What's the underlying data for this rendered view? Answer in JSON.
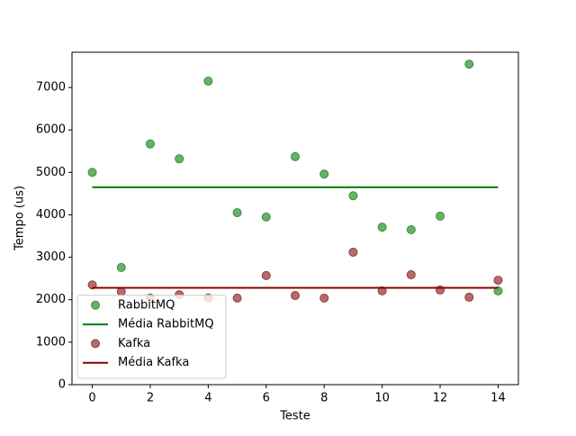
{
  "chart_data": {
    "type": "scatter",
    "xlabel": "Teste",
    "ylabel": "Tempo (us)",
    "x": [
      0,
      1,
      2,
      3,
      4,
      5,
      6,
      7,
      8,
      9,
      10,
      11,
      12,
      13,
      14
    ],
    "series": [
      {
        "name": "RabbitMQ",
        "type": "scatter",
        "color": "#66b366",
        "edge": "#3d8c3d",
        "values": [
          5000,
          2760,
          5670,
          5320,
          7150,
          4050,
          3950,
          5370,
          4960,
          4450,
          3710,
          3650,
          3970,
          7550,
          2210
        ]
      },
      {
        "name": "Média RabbitMQ",
        "type": "line",
        "color": "#008000",
        "value": 4650
      },
      {
        "name": "Kafka",
        "type": "scatter",
        "color": "#b86a6a",
        "edge": "#8c3f3f",
        "values": [
          2350,
          2190,
          2040,
          2120,
          2040,
          2040,
          2570,
          2100,
          2040,
          3120,
          2210,
          2590,
          2230,
          2060,
          2460
        ]
      },
      {
        "name": "Média Kafka",
        "type": "line",
        "color": "#8b0000",
        "value": 2280
      }
    ],
    "xlim": [
      -0.7,
      14.7
    ],
    "xticks": [
      0,
      2,
      4,
      6,
      8,
      10,
      12,
      14
    ],
    "ylim": [
      0,
      7830
    ],
    "yticks": [
      0,
      1000,
      2000,
      3000,
      4000,
      5000,
      6000,
      7000
    ],
    "legend": "lower left"
  }
}
